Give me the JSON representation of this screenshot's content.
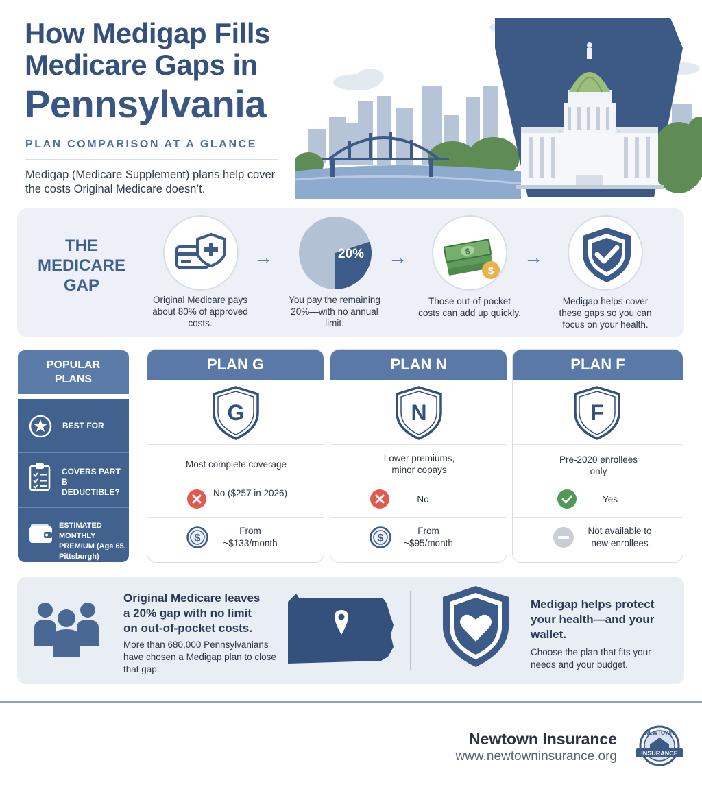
{
  "header": {
    "title_line1": "How Medigap Fills",
    "title_line2": "Medicare Gaps in",
    "title_line3": "Pennsylvania",
    "subtitle": "PLAN COMPARISON AT A GLANCE",
    "intro": "Medigap (Medicare Supplement) plans help cover the costs Original Medicare doesn’t."
  },
  "gap": {
    "title": "THE MEDICARE GAP",
    "pie_percent": "20%",
    "pie_fraction": 0.2,
    "steps": [
      {
        "icon": "card-shield-icon",
        "text": "Original Medicare pays about 80% of approved costs."
      },
      {
        "icon": "pie-chart-icon",
        "text": "You pay the remaining 20%—with no annual limit."
      },
      {
        "icon": "cash-stack-icon",
        "text": "Those out-of-pocket costs can add up quickly."
      },
      {
        "icon": "shield-check-icon",
        "text": "Medigap helps cover these gaps so you can focus on your health."
      }
    ]
  },
  "popular": {
    "title": "POPULAR PLANS",
    "rows": [
      {
        "icon": "star-icon",
        "label": "BEST FOR"
      },
      {
        "icon": "clipboard-icon",
        "label": "COVERS PART B DEDUCTIBLE?"
      },
      {
        "icon": "wallet-icon",
        "label": "ESTIMATED MONTHLY PREMIUM (Age 65, Pittsburgh)"
      }
    ]
  },
  "plans": [
    {
      "name": "PLAN G",
      "letter": "G",
      "best_for": "Most complete coverage",
      "deductible_status": "no",
      "deductible": "No ($257 in 2026)",
      "premium_status": "dollar",
      "premium": "From ~$133/month"
    },
    {
      "name": "PLAN N",
      "letter": "N",
      "best_for": "Lower premiums, minor copays",
      "deductible_status": "no",
      "deductible": "No",
      "premium_status": "dollar",
      "premium": "From ~$95/month"
    },
    {
      "name": "PLAN F",
      "letter": "F",
      "best_for": "Pre-2020 enrollees only",
      "deductible_status": "yes",
      "deductible": "Yes",
      "premium_status": "none",
      "premium": "Not available to new enrollees"
    }
  ],
  "bottom": {
    "left_heading": "Original Medicare leaves a 20% gap with no limit on out-of-pocket costs.",
    "left_body": "More than 680,000 Pennsylvanians have chosen a Medigap plan to close that gap.",
    "right_heading": "Medigap helps protect your health—and your wallet.",
    "right_body": "Choose the plan that fits your needs and your budget."
  },
  "footer": {
    "company": "Newtown Insurance",
    "url": "www.newtowninsurance.org",
    "badge_top": "NEWTOWN",
    "badge_label": "INSURANCE"
  },
  "colors": {
    "navy": "#34507c",
    "plan_header": "#5a79a6",
    "popular_panel": "#41628f",
    "red": "#e05a4f",
    "green": "#4f9a58"
  }
}
